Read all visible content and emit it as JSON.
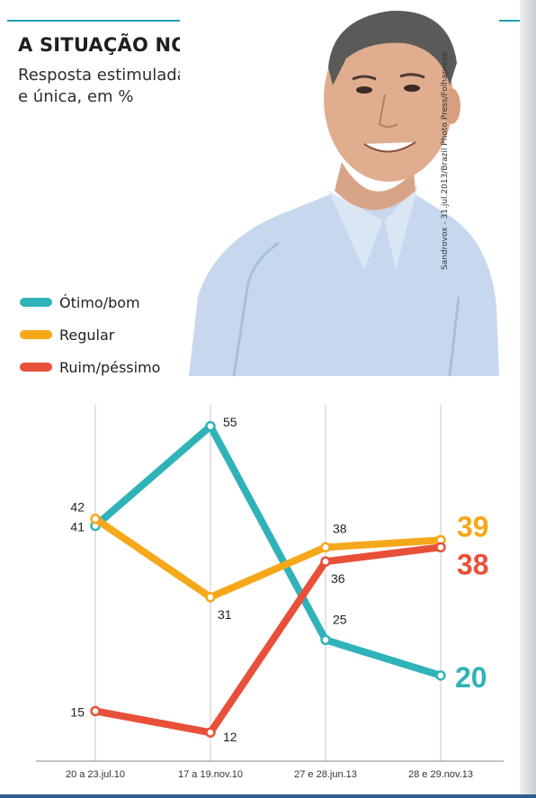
{
  "header": {
    "title": "A SITUAÇÃO NO RIO",
    "subtitle_line1": "Resposta estimulada",
    "subtitle_line2": "e única, em %"
  },
  "photo": {
    "credit": "Sandrovox - 31.jul.2013/Brazil Photo Press/Folhapress"
  },
  "colors": {
    "otimo": "#2fb3b8",
    "regular": "#f6a81b",
    "ruim": "#e8503a",
    "grid": "#c8c8c8",
    "text": "#222222"
  },
  "chart_data": {
    "type": "line",
    "categories": [
      "20 a 23.jul.10",
      "17 a 19.nov.10",
      "27 e 28.jun.13",
      "28 e 29.nov.13"
    ],
    "series": [
      {
        "name": "Ótimo/bom",
        "values": [
          41,
          55,
          25,
          20
        ],
        "color": "#2fb3b8"
      },
      {
        "name": "Regular",
        "values": [
          42,
          31,
          38,
          39
        ],
        "color": "#f6a81b"
      },
      {
        "name": "Ruim/péssimo",
        "values": [
          15,
          12,
          36,
          38
        ],
        "color": "#e8503a"
      }
    ],
    "ylim": [
      10,
      58
    ]
  }
}
